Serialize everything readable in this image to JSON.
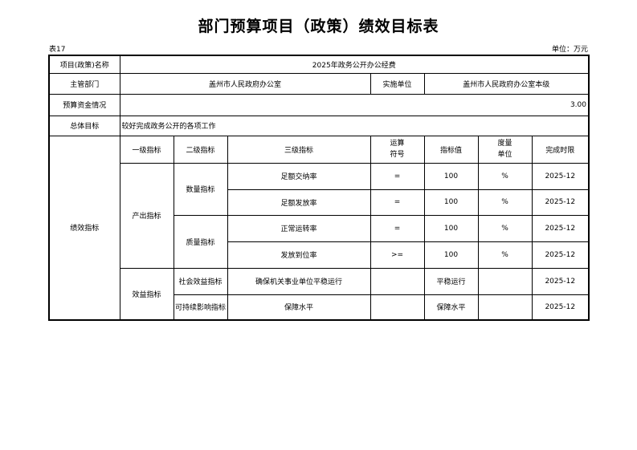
{
  "title": "部门预算项目（政策）绩效目标表",
  "table_no": "表17",
  "unit": "单位：万元",
  "info": {
    "project_name_label": "项目(政策)名称",
    "project_name": "2025年政务公开办公经费",
    "dept_label": "主管部门",
    "dept": "盖州市人民政府办公室",
    "impl_label": "实施单位",
    "impl": "盖州市人民政府办公室本级",
    "budget_label": "预算资金情况",
    "budget": "3.00",
    "goal_label": "总体目标",
    "goal": "较好完成政务公开的各项工作"
  },
  "headers": {
    "perf": "绩效指标",
    "l1": "一级指标",
    "l2": "二级指标",
    "l3": "三级指标",
    "op": "运算符号",
    "val": "指标值",
    "unit": "度量单位",
    "deadline": "完成时限"
  },
  "groups": {
    "output": "产出指标",
    "quantity": "数量指标",
    "quality": "质量指标",
    "benefit": "效益指标",
    "social": "社会效益指标",
    "sustain": "可持续影响指标"
  },
  "rows": [
    {
      "l3": "足额交纳率",
      "op": "=",
      "val": "100",
      "unit": "%",
      "deadline": "2025-12"
    },
    {
      "l3": "足额发放率",
      "op": "=",
      "val": "100",
      "unit": "%",
      "deadline": "2025-12"
    },
    {
      "l3": "正常运转率",
      "op": "=",
      "val": "100",
      "unit": "%",
      "deadline": "2025-12"
    },
    {
      "l3": "发放到位率",
      "op": ">=",
      "val": "100",
      "unit": "%",
      "deadline": "2025-12"
    },
    {
      "l3": "确保机关事业单位平稳运行",
      "op": "",
      "val": "平稳运行",
      "unit": "",
      "deadline": "2025-12"
    },
    {
      "l3": "保障水平",
      "op": "",
      "val": "保障水平",
      "unit": "",
      "deadline": "2025-12"
    }
  ]
}
